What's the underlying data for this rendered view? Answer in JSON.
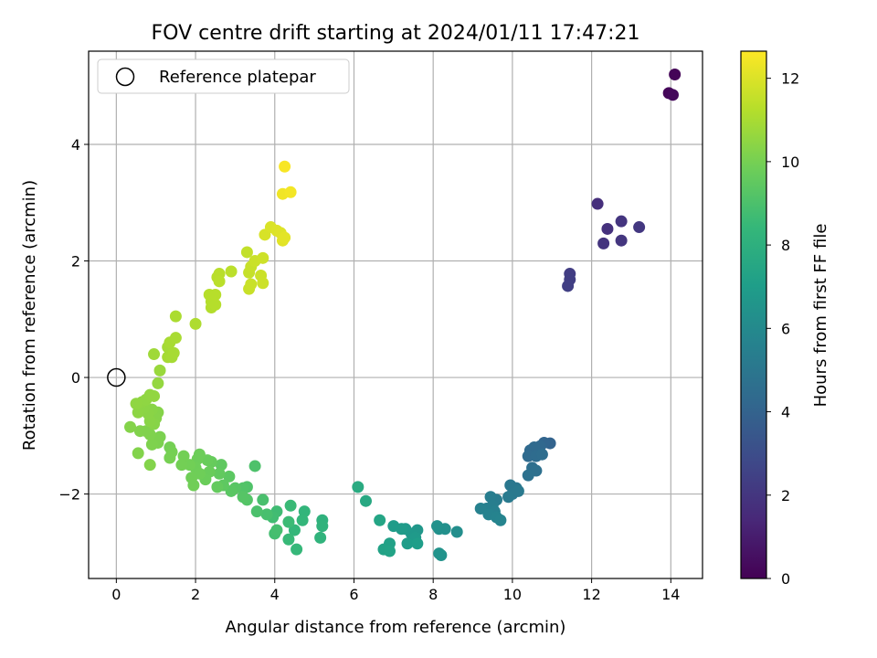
{
  "chart_data": {
    "type": "scatter",
    "title": "FOV centre drift starting at 2024/01/11 17:47:21",
    "xlabel": "Angular distance from reference (arcmin)",
    "ylabel": "Rotation from reference (arcmin)",
    "xlim": [
      -0.7,
      14.8
    ],
    "ylim": [
      -3.45,
      5.6
    ],
    "xticks": [
      0,
      2,
      4,
      6,
      8,
      10,
      12,
      14
    ],
    "yticks": [
      -2,
      0,
      2,
      4
    ],
    "xtick_labels": [
      "0",
      "2",
      "4",
      "6",
      "8",
      "10",
      "12",
      "14"
    ],
    "ytick_labels": [
      "−2",
      "0",
      "2",
      "4"
    ],
    "grid": true,
    "legend": {
      "position": "top-left",
      "entries": [
        "Reference platepar"
      ]
    },
    "reference_point": {
      "x": 0,
      "y": 0
    },
    "colorbar": {
      "label": "Hours from first FF file",
      "range": [
        0,
        12.65
      ],
      "ticks": [
        0,
        2,
        4,
        6,
        8,
        10,
        12
      ],
      "tick_labels": [
        "0",
        "2",
        "4",
        "6",
        "8",
        "10",
        "12"
      ],
      "colormap": "viridis",
      "stops": [
        "#440154",
        "#482878",
        "#3e4989",
        "#31688e",
        "#26828e",
        "#1f9e89",
        "#35b779",
        "#6ece58",
        "#b5de2b",
        "#fde725"
      ]
    },
    "points": [
      {
        "x": 14.1,
        "y": 5.2,
        "t": 0.1
      },
      {
        "x": 13.95,
        "y": 4.88,
        "t": 0.2
      },
      {
        "x": 14.05,
        "y": 4.85,
        "t": 0.3
      },
      {
        "x": 12.15,
        "y": 2.98,
        "t": 1.7
      },
      {
        "x": 12.4,
        "y": 2.55,
        "t": 1.8
      },
      {
        "x": 12.3,
        "y": 2.3,
        "t": 1.9
      },
      {
        "x": 12.75,
        "y": 2.68,
        "t": 1.95
      },
      {
        "x": 12.75,
        "y": 2.35,
        "t": 2.0
      },
      {
        "x": 13.2,
        "y": 2.58,
        "t": 2.05
      },
      {
        "x": 11.45,
        "y": 1.78,
        "t": 2.3
      },
      {
        "x": 11.45,
        "y": 1.68,
        "t": 2.35
      },
      {
        "x": 11.4,
        "y": 1.57,
        "t": 2.4
      },
      {
        "x": 10.95,
        "y": -1.13,
        "t": 4.0
      },
      {
        "x": 10.8,
        "y": -1.12,
        "t": 4.1
      },
      {
        "x": 10.7,
        "y": -1.18,
        "t": 4.2
      },
      {
        "x": 10.55,
        "y": -1.2,
        "t": 4.3
      },
      {
        "x": 10.45,
        "y": -1.25,
        "t": 4.35
      },
      {
        "x": 10.4,
        "y": -1.35,
        "t": 4.4
      },
      {
        "x": 10.6,
        "y": -1.35,
        "t": 4.45
      },
      {
        "x": 10.75,
        "y": -1.32,
        "t": 4.5
      },
      {
        "x": 10.5,
        "y": -1.55,
        "t": 4.6
      },
      {
        "x": 10.6,
        "y": -1.6,
        "t": 4.65
      },
      {
        "x": 10.4,
        "y": -1.68,
        "t": 4.7
      },
      {
        "x": 10.1,
        "y": -1.9,
        "t": 5.0
      },
      {
        "x": 9.95,
        "y": -1.85,
        "t": 5.05
      },
      {
        "x": 10.0,
        "y": -2.0,
        "t": 5.1
      },
      {
        "x": 10.15,
        "y": -1.95,
        "t": 5.15
      },
      {
        "x": 9.9,
        "y": -2.05,
        "t": 5.2
      },
      {
        "x": 9.6,
        "y": -2.1,
        "t": 5.3
      },
      {
        "x": 9.45,
        "y": -2.05,
        "t": 5.35
      },
      {
        "x": 9.5,
        "y": -2.2,
        "t": 5.4
      },
      {
        "x": 9.35,
        "y": -2.25,
        "t": 5.45
      },
      {
        "x": 9.55,
        "y": -2.3,
        "t": 5.5
      },
      {
        "x": 9.2,
        "y": -2.25,
        "t": 5.55
      },
      {
        "x": 9.4,
        "y": -2.35,
        "t": 5.6
      },
      {
        "x": 9.6,
        "y": -2.4,
        "t": 5.65
      },
      {
        "x": 9.7,
        "y": -2.45,
        "t": 5.7
      },
      {
        "x": 8.6,
        "y": -2.65,
        "t": 6.2
      },
      {
        "x": 8.3,
        "y": -2.6,
        "t": 6.3
      },
      {
        "x": 8.15,
        "y": -2.6,
        "t": 6.35
      },
      {
        "x": 8.1,
        "y": -2.55,
        "t": 6.4
      },
      {
        "x": 8.2,
        "y": -3.05,
        "t": 6.45
      },
      {
        "x": 8.15,
        "y": -3.02,
        "t": 6.5
      },
      {
        "x": 7.6,
        "y": -2.62,
        "t": 6.7
      },
      {
        "x": 7.45,
        "y": -2.68,
        "t": 6.75
      },
      {
        "x": 7.3,
        "y": -2.6,
        "t": 6.8
      },
      {
        "x": 7.55,
        "y": -2.75,
        "t": 6.85
      },
      {
        "x": 7.2,
        "y": -2.6,
        "t": 6.9
      },
      {
        "x": 7.0,
        "y": -2.55,
        "t": 6.95
      },
      {
        "x": 7.35,
        "y": -2.85,
        "t": 7.0
      },
      {
        "x": 7.6,
        "y": -2.85,
        "t": 7.05
      },
      {
        "x": 6.9,
        "y": -2.85,
        "t": 7.2
      },
      {
        "x": 6.75,
        "y": -2.95,
        "t": 7.25
      },
      {
        "x": 6.9,
        "y": -2.98,
        "t": 7.3
      },
      {
        "x": 6.65,
        "y": -2.45,
        "t": 7.4
      },
      {
        "x": 6.3,
        "y": -2.12,
        "t": 7.6
      },
      {
        "x": 6.1,
        "y": -1.88,
        "t": 7.7
      },
      {
        "x": 5.2,
        "y": -2.45,
        "t": 8.1
      },
      {
        "x": 5.2,
        "y": -2.55,
        "t": 8.15
      },
      {
        "x": 5.15,
        "y": -2.75,
        "t": 8.2
      },
      {
        "x": 4.75,
        "y": -2.3,
        "t": 8.3
      },
      {
        "x": 4.7,
        "y": -2.45,
        "t": 8.35
      },
      {
        "x": 4.5,
        "y": -2.62,
        "t": 8.4
      },
      {
        "x": 4.55,
        "y": -2.95,
        "t": 8.45
      },
      {
        "x": 4.35,
        "y": -2.78,
        "t": 8.5
      },
      {
        "x": 4.4,
        "y": -2.2,
        "t": 8.55
      },
      {
        "x": 4.35,
        "y": -2.48,
        "t": 8.6
      },
      {
        "x": 4.05,
        "y": -2.3,
        "t": 8.7
      },
      {
        "x": 3.95,
        "y": -2.4,
        "t": 8.75
      },
      {
        "x": 4.0,
        "y": -2.68,
        "t": 8.8
      },
      {
        "x": 4.05,
        "y": -2.62,
        "t": 8.85
      },
      {
        "x": 3.8,
        "y": -2.35,
        "t": 8.9
      },
      {
        "x": 3.7,
        "y": -2.1,
        "t": 8.95
      },
      {
        "x": 3.55,
        "y": -2.3,
        "t": 9.0
      },
      {
        "x": 3.5,
        "y": -1.52,
        "t": 9.05
      },
      {
        "x": 3.3,
        "y": -1.88,
        "t": 9.1
      },
      {
        "x": 3.2,
        "y": -1.9,
        "t": 9.15
      },
      {
        "x": 3.3,
        "y": -2.1,
        "t": 9.2
      },
      {
        "x": 3.2,
        "y": -2.05,
        "t": 9.25
      },
      {
        "x": 3.0,
        "y": -1.9,
        "t": 9.3
      },
      {
        "x": 2.9,
        "y": -1.95,
        "t": 9.35
      },
      {
        "x": 2.85,
        "y": -1.7,
        "t": 9.4
      },
      {
        "x": 2.7,
        "y": -1.85,
        "t": 9.45
      },
      {
        "x": 2.65,
        "y": -1.5,
        "t": 9.5
      },
      {
        "x": 2.6,
        "y": -1.65,
        "t": 9.55
      },
      {
        "x": 2.55,
        "y": -1.88,
        "t": 9.6
      },
      {
        "x": 2.4,
        "y": -1.45,
        "t": 9.65
      },
      {
        "x": 2.3,
        "y": -1.42,
        "t": 9.7
      },
      {
        "x": 2.35,
        "y": -1.62,
        "t": 9.72
      },
      {
        "x": 2.25,
        "y": -1.75,
        "t": 9.75
      },
      {
        "x": 2.1,
        "y": -1.32,
        "t": 9.78
      },
      {
        "x": 2.05,
        "y": -1.4,
        "t": 9.8
      },
      {
        "x": 2.0,
        "y": -1.55,
        "t": 9.82
      },
      {
        "x": 2.1,
        "y": -1.65,
        "t": 9.84
      },
      {
        "x": 1.9,
        "y": -1.72,
        "t": 9.86
      },
      {
        "x": 1.95,
        "y": -1.85,
        "t": 9.88
      },
      {
        "x": 1.85,
        "y": -1.5,
        "t": 9.9
      },
      {
        "x": 1.7,
        "y": -1.35,
        "t": 9.92
      },
      {
        "x": 1.65,
        "y": -1.5,
        "t": 9.94
      },
      {
        "x": 1.35,
        "y": -1.2,
        "t": 9.96
      },
      {
        "x": 1.4,
        "y": -1.28,
        "t": 9.98
      },
      {
        "x": 1.35,
        "y": -1.38,
        "t": 10.0
      },
      {
        "x": 1.1,
        "y": -1.02,
        "t": 10.1
      },
      {
        "x": 1.05,
        "y": -1.12,
        "t": 10.12
      },
      {
        "x": 1.0,
        "y": -1.05,
        "t": 10.14
      },
      {
        "x": 0.9,
        "y": -1.15,
        "t": 10.16
      },
      {
        "x": 0.85,
        "y": -0.98,
        "t": 10.18
      },
      {
        "x": 0.75,
        "y": -0.92,
        "t": 10.2
      },
      {
        "x": 0.6,
        "y": -0.92,
        "t": 10.22
      },
      {
        "x": 0.55,
        "y": -1.3,
        "t": 10.24
      },
      {
        "x": 0.85,
        "y": -1.5,
        "t": 10.26
      },
      {
        "x": 0.35,
        "y": -0.85,
        "t": 10.28
      },
      {
        "x": 1.05,
        "y": -0.6,
        "t": 10.3
      },
      {
        "x": 1.0,
        "y": -0.7,
        "t": 10.32
      },
      {
        "x": 0.95,
        "y": -0.8,
        "t": 10.34
      },
      {
        "x": 0.9,
        "y": -0.55,
        "t": 10.36
      },
      {
        "x": 0.85,
        "y": -0.75,
        "t": 10.38
      },
      {
        "x": 0.8,
        "y": -0.62,
        "t": 10.4
      },
      {
        "x": 0.7,
        "y": -0.52,
        "t": 10.42
      },
      {
        "x": 0.6,
        "y": -0.48,
        "t": 10.44
      },
      {
        "x": 0.55,
        "y": -0.6,
        "t": 10.46
      },
      {
        "x": 0.65,
        "y": -0.42,
        "t": 10.48
      },
      {
        "x": 0.75,
        "y": -0.38,
        "t": 10.5
      },
      {
        "x": 0.5,
        "y": -0.45,
        "t": 10.52
      },
      {
        "x": 0.85,
        "y": -0.3,
        "t": 10.54
      },
      {
        "x": 0.95,
        "y": -0.32,
        "t": 10.56
      },
      {
        "x": 1.05,
        "y": -0.1,
        "t": 10.6
      },
      {
        "x": 1.1,
        "y": 0.12,
        "t": 10.7
      },
      {
        "x": 0.95,
        "y": 0.4,
        "t": 10.8
      },
      {
        "x": 1.3,
        "y": 0.52,
        "t": 10.9
      },
      {
        "x": 1.3,
        "y": 0.35,
        "t": 10.92
      },
      {
        "x": 1.4,
        "y": 0.35,
        "t": 10.94
      },
      {
        "x": 1.45,
        "y": 0.42,
        "t": 10.96
      },
      {
        "x": 1.35,
        "y": 0.6,
        "t": 10.98
      },
      {
        "x": 1.5,
        "y": 0.68,
        "t": 11.0
      },
      {
        "x": 1.5,
        "y": 1.05,
        "t": 11.05
      },
      {
        "x": 2.0,
        "y": 0.92,
        "t": 11.1
      },
      {
        "x": 2.4,
        "y": 1.2,
        "t": 11.2
      },
      {
        "x": 2.4,
        "y": 1.3,
        "t": 11.22
      },
      {
        "x": 2.5,
        "y": 1.25,
        "t": 11.24
      },
      {
        "x": 2.35,
        "y": 1.42,
        "t": 11.26
      },
      {
        "x": 2.5,
        "y": 1.42,
        "t": 11.28
      },
      {
        "x": 2.55,
        "y": 1.72,
        "t": 11.3
      },
      {
        "x": 2.6,
        "y": 1.78,
        "t": 11.32
      },
      {
        "x": 2.6,
        "y": 1.65,
        "t": 11.34
      },
      {
        "x": 2.9,
        "y": 1.82,
        "t": 11.36
      },
      {
        "x": 3.3,
        "y": 2.15,
        "t": 11.5
      },
      {
        "x": 3.35,
        "y": 1.8,
        "t": 11.55
      },
      {
        "x": 3.4,
        "y": 1.9,
        "t": 11.6
      },
      {
        "x": 3.35,
        "y": 1.52,
        "t": 11.62
      },
      {
        "x": 3.4,
        "y": 1.6,
        "t": 11.64
      },
      {
        "x": 3.5,
        "y": 2.0,
        "t": 11.66
      },
      {
        "x": 3.65,
        "y": 1.75,
        "t": 11.68
      },
      {
        "x": 3.7,
        "y": 1.62,
        "t": 11.7
      },
      {
        "x": 3.7,
        "y": 2.05,
        "t": 11.72
      },
      {
        "x": 3.75,
        "y": 2.45,
        "t": 11.9
      },
      {
        "x": 3.9,
        "y": 2.58,
        "t": 11.95
      },
      {
        "x": 4.05,
        "y": 2.52,
        "t": 12.0
      },
      {
        "x": 4.15,
        "y": 2.48,
        "t": 12.05
      },
      {
        "x": 4.2,
        "y": 2.35,
        "t": 12.1
      },
      {
        "x": 4.25,
        "y": 2.4,
        "t": 12.15
      },
      {
        "x": 4.2,
        "y": 3.15,
        "t": 12.4
      },
      {
        "x": 4.4,
        "y": 3.18,
        "t": 12.45
      },
      {
        "x": 4.25,
        "y": 3.62,
        "t": 12.55
      }
    ]
  }
}
